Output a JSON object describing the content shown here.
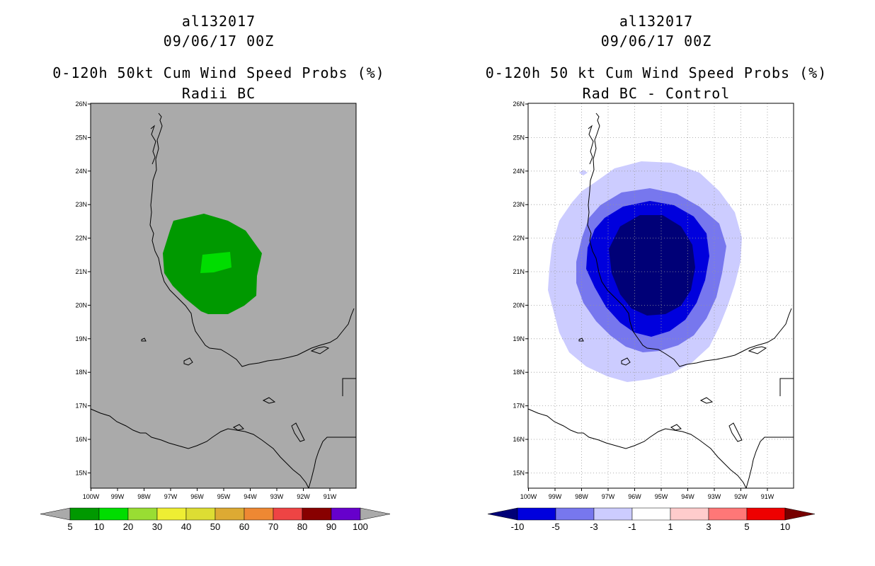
{
  "left_panel": {
    "storm_id": "al132017",
    "datetime": "09/06/17 00Z",
    "title": "0-120h 50kt Cum Wind Speed Probs (%)",
    "subtitle": "Radii BC",
    "colorbar": {
      "labels": [
        "5",
        "10",
        "20",
        "30",
        "40",
        "50",
        "60",
        "70",
        "80",
        "90",
        "100"
      ],
      "colors": [
        "#009900",
        "#00dd00",
        "#99dd33",
        "#eeee33",
        "#dddd33",
        "#ddaa33",
        "#ee8833",
        "#ee4444",
        "#880000",
        "#6600cc"
      ],
      "under_color": "#aaaaaa",
      "over_color": "#aaaaaa"
    },
    "map_background": "#aaaaaa"
  },
  "right_panel": {
    "storm_id": "al132017",
    "datetime": "09/06/17 00Z",
    "title": "0-120h 50 kt Cum Wind Speed Probs (%)",
    "subtitle": "Rad BC - Control",
    "colorbar": {
      "labels": [
        "-10",
        "-5",
        "-3",
        "-1",
        "1",
        "3",
        "5",
        "10"
      ],
      "colors": [
        "#0000dd",
        "#7777ee",
        "#ccccff",
        "#ffffff",
        "#ffcccc",
        "#ff7777",
        "#ee0000"
      ],
      "under_color": "#000077",
      "over_color": "#770000"
    },
    "map_background": "#ffffff"
  },
  "axes": {
    "lat_labels": [
      "26N",
      "25N",
      "24N",
      "23N",
      "22N",
      "21N",
      "20N",
      "19N",
      "18N",
      "17N",
      "16N",
      "15N"
    ],
    "lon_labels": [
      "100W",
      "99W",
      "98W",
      "97W",
      "96W",
      "95W",
      "94W",
      "93W",
      "92W",
      "91W"
    ],
    "lat_range": [
      14.5,
      26
    ],
    "lon_range": [
      -100,
      -90
    ]
  },
  "map_data": {
    "left_contours": [
      {
        "level": "5-10",
        "color": "#009900"
      },
      {
        "level": "10-20",
        "color": "#00dd00"
      }
    ],
    "right_contours": [
      {
        "level": "-1 to -3",
        "color": "#ccccff"
      },
      {
        "level": "-3 to -5",
        "color": "#7777ee"
      },
      {
        "level": "-5 to -10",
        "color": "#0000dd"
      },
      {
        "level": "< -10",
        "color": "#000077"
      }
    ]
  }
}
